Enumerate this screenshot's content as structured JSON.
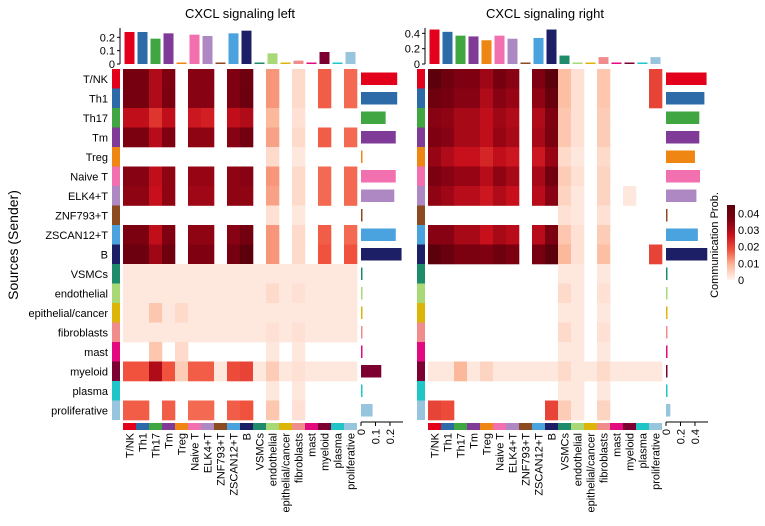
{
  "chart_data": {
    "type": "heatmap",
    "ylabel": "Sources (Sender)",
    "colorbar": {
      "title": "Communication Prob.",
      "ticks": [
        0,
        0.01,
        0.02,
        0.03,
        0.04
      ],
      "range": [
        0,
        0.045
      ],
      "colors": [
        "#fff5f0",
        "#fcb89b",
        "#f0523d",
        "#c8101c",
        "#7f0011",
        "#5c000b"
      ]
    },
    "groups": [
      "T/NK",
      "Th1",
      "Th17",
      "Tm",
      "Treg",
      "Naive T",
      "ELK4+T",
      "ZNF793+T",
      "ZSCAN12+T",
      "B",
      "VSMCs",
      "endothelial",
      "epithelial/cancer",
      "fibroblasts",
      "mast",
      "myeloid",
      "plasma",
      "proliferative"
    ],
    "group_colors": [
      "#e2001a",
      "#2d6aa8",
      "#3fa642",
      "#7f3b97",
      "#ef8512",
      "#f26fb0",
      "#ad88c3",
      "#8c4a20",
      "#4aa3de",
      "#1c1f66",
      "#1e8c6a",
      "#a9d877",
      "#ddb508",
      "#f08c8c",
      "#e3097f",
      "#7c0030",
      "#1fc5c7",
      "#97c5dd"
    ],
    "panels": [
      {
        "title": "CXCL signaling  left",
        "top_bar_ticks": [
          "0",
          "0.1",
          "0.2"
        ],
        "top_bar_tick_values": [
          0,
          0.1,
          0.2
        ],
        "top_bar_max": 0.27,
        "side_bar_ticks": [
          "0",
          "0.1",
          "0.2"
        ],
        "side_bar_tick_values": [
          0,
          0.1,
          0.2
        ],
        "side_bar_max": 0.29,
        "incoming_totals": [
          0.24,
          0.24,
          0.19,
          0.23,
          0.01,
          0.22,
          0.21,
          0.005,
          0.23,
          0.25,
          0.005,
          0.08,
          0.005,
          0.025,
          0.005,
          0.09,
          0.005,
          0.09
        ],
        "outgoing_totals": [
          0.25,
          0.25,
          0.17,
          0.24,
          0.01,
          0.24,
          0.23,
          0.005,
          0.24,
          0.28,
          0.005,
          0.005,
          0.005,
          0.005,
          0.005,
          0.14,
          0.005,
          0.08
        ],
        "matrix": [
          [
            0.038,
            0.038,
            0.03,
            0.036,
            0,
            0.035,
            0.035,
            0,
            0.036,
            0.04,
            0,
            0.012,
            0,
            0.004,
            0,
            0.017,
            0,
            0.016
          ],
          [
            0.038,
            0.038,
            0.03,
            0.037,
            0,
            0.035,
            0.035,
            0,
            0.036,
            0.041,
            0,
            0.012,
            0,
            0.004,
            0,
            0.017,
            0,
            0.016
          ],
          [
            0.028,
            0.028,
            0.022,
            0.028,
            0,
            0.026,
            0.025,
            0,
            0.028,
            0.03,
            0,
            0.009,
            0,
            0.003,
            0,
            0,
            0,
            0
          ],
          [
            0.037,
            0.037,
            0.029,
            0.036,
            0,
            0.034,
            0.034,
            0,
            0.035,
            0.039,
            0,
            0.011,
            0,
            0.004,
            0,
            0.017,
            0,
            0.016
          ],
          [
            0,
            0,
            0,
            0,
            0,
            0,
            0,
            0,
            0,
            0,
            0,
            0.004,
            0,
            0.002,
            0,
            0,
            0,
            0
          ],
          [
            0.035,
            0.035,
            0.028,
            0.034,
            0,
            0.033,
            0.033,
            0,
            0.034,
            0.035,
            0,
            0.012,
            0,
            0.004,
            0,
            0.016,
            0,
            0.016
          ],
          [
            0.034,
            0.034,
            0.027,
            0.034,
            0,
            0.032,
            0.032,
            0,
            0.034,
            0.034,
            0,
            0.011,
            0,
            0.004,
            0,
            0.016,
            0,
            0.016
          ],
          [
            0,
            0,
            0,
            0,
            0,
            0,
            0,
            0,
            0,
            0,
            0,
            0.003,
            0,
            0.002,
            0,
            0,
            0,
            0
          ],
          [
            0.037,
            0.037,
            0.028,
            0.036,
            0,
            0.034,
            0.034,
            0,
            0.035,
            0.039,
            0,
            0.012,
            0,
            0.004,
            0,
            0.017,
            0,
            0.016
          ],
          [
            0.041,
            0.041,
            0.032,
            0.04,
            0,
            0.036,
            0.036,
            0,
            0.038,
            0.045,
            0,
            0.012,
            0,
            0.004,
            0,
            0.018,
            0,
            0.018
          ],
          [
            0.002,
            0.002,
            0.002,
            0.002,
            0.002,
            0.002,
            0.002,
            0.002,
            0.002,
            0.002,
            0.002,
            0.002,
            0.002,
            0.002,
            0.002,
            0.002,
            0.002,
            0.002
          ],
          [
            0.002,
            0.002,
            0.002,
            0.002,
            0.002,
            0.002,
            0.002,
            0.002,
            0.002,
            0.002,
            0.002,
            0.004,
            0.002,
            0.003,
            0.002,
            0.002,
            0.002,
            0.002
          ],
          [
            0.002,
            0.002,
            0.007,
            0.002,
            0.004,
            0.002,
            0.002,
            0.002,
            0.002,
            0.002,
            0.002,
            0.002,
            0.002,
            0.002,
            0.002,
            0.002,
            0.002,
            0.002
          ],
          [
            0.002,
            0.002,
            0.002,
            0.002,
            0.002,
            0.002,
            0.002,
            0.002,
            0.002,
            0.002,
            0.002,
            0.003,
            0.002,
            0.003,
            0.002,
            0.002,
            0.002,
            0.002
          ],
          [
            0,
            0,
            0.007,
            0,
            0.004,
            0,
            0,
            0,
            0,
            0,
            0,
            0.002,
            0,
            0.002,
            0,
            0,
            0,
            0
          ],
          [
            0.018,
            0.018,
            0.03,
            0.018,
            0.006,
            0.017,
            0.017,
            0.002,
            0.019,
            0.02,
            0.002,
            0.006,
            0.002,
            0.003,
            0.002,
            0.002,
            0.002,
            0.002
          ],
          [
            0,
            0,
            0,
            0,
            0,
            0,
            0,
            0,
            0,
            0,
            0,
            0.002,
            0,
            0.002,
            0,
            0,
            0,
            0
          ],
          [
            0.017,
            0.017,
            0,
            0.017,
            0,
            0.016,
            0.016,
            0,
            0.017,
            0.018,
            0,
            0.007,
            0,
            0.003,
            0,
            0,
            0,
            0
          ]
        ]
      },
      {
        "title": "CXCL signaling  right",
        "top_bar_ticks": [
          "0",
          "0.2",
          "0.4"
        ],
        "top_bar_tick_values": [
          0,
          0.2,
          0.4
        ],
        "top_bar_max": 0.47,
        "side_bar_ticks": [
          "0",
          "0.2",
          "0.4"
        ],
        "side_bar_tick_values": [
          0,
          0.2,
          0.4
        ],
        "side_bar_max": 0.58,
        "incoming_totals": [
          0.45,
          0.42,
          0.37,
          0.36,
          0.31,
          0.37,
          0.33,
          0.01,
          0.34,
          0.45,
          0.11,
          0.02,
          0.01,
          0.09,
          0.01,
          0.01,
          0.01,
          0.09
        ],
        "outgoing_totals": [
          0.56,
          0.53,
          0.46,
          0.46,
          0.4,
          0.47,
          0.42,
          0.005,
          0.44,
          0.57,
          0.005,
          0.005,
          0.005,
          0.005,
          0.005,
          0.01,
          0.005,
          0.06
        ],
        "matrix": [
          [
            0.045,
            0.04,
            0.036,
            0.036,
            0.032,
            0.038,
            0.035,
            0,
            0.036,
            0.045,
            0.008,
            0.003,
            0,
            0.007,
            0,
            0,
            0,
            0.02
          ],
          [
            0.04,
            0.038,
            0.035,
            0.035,
            0.03,
            0.035,
            0.033,
            0,
            0.034,
            0.042,
            0.008,
            0.003,
            0,
            0.007,
            0,
            0,
            0,
            0.02
          ],
          [
            0.035,
            0.034,
            0.031,
            0.031,
            0.028,
            0.032,
            0.03,
            0,
            0.03,
            0.036,
            0.007,
            0.003,
            0,
            0.006,
            0,
            0,
            0,
            0
          ],
          [
            0.036,
            0.035,
            0.031,
            0.031,
            0.028,
            0.033,
            0.031,
            0,
            0.031,
            0.037,
            0.007,
            0.003,
            0,
            0.006,
            0,
            0,
            0,
            0
          ],
          [
            0.033,
            0.03,
            0.027,
            0.027,
            0.024,
            0.028,
            0.026,
            0,
            0.026,
            0.033,
            0.004,
            0.002,
            0,
            0.004,
            0,
            0,
            0,
            0
          ],
          [
            0.037,
            0.035,
            0.033,
            0.033,
            0.029,
            0.034,
            0.031,
            0,
            0.031,
            0.039,
            0.006,
            0.003,
            0,
            0.005,
            0,
            0,
            0,
            0
          ],
          [
            0.034,
            0.032,
            0.029,
            0.029,
            0.026,
            0.03,
            0.027,
            0,
            0.029,
            0.035,
            0.005,
            0.002,
            0,
            0.005,
            0,
            0.002,
            0,
            0
          ],
          [
            0,
            0,
            0,
            0,
            0,
            0,
            0,
            0,
            0,
            0,
            0.003,
            0.002,
            0,
            0.003,
            0,
            0,
            0,
            0
          ],
          [
            0.035,
            0.035,
            0.031,
            0.031,
            0.027,
            0.031,
            0.029,
            0,
            0.029,
            0.037,
            0.007,
            0.003,
            0,
            0.006,
            0,
            0,
            0,
            0
          ],
          [
            0.045,
            0.042,
            0.037,
            0.037,
            0.036,
            0.04,
            0.037,
            0,
            0.038,
            0.048,
            0.009,
            0.003,
            0,
            0.008,
            0,
            0,
            0,
            0.02
          ],
          [
            0,
            0,
            0,
            0,
            0,
            0,
            0,
            0,
            0,
            0,
            0.002,
            0.002,
            0,
            0.002,
            0,
            0,
            0,
            0
          ],
          [
            0,
            0,
            0,
            0,
            0,
            0,
            0,
            0,
            0,
            0,
            0.004,
            0.002,
            0,
            0.003,
            0,
            0,
            0,
            0
          ],
          [
            0,
            0,
            0,
            0,
            0,
            0,
            0,
            0,
            0,
            0,
            0.002,
            0.002,
            0,
            0.002,
            0,
            0,
            0,
            0
          ],
          [
            0,
            0,
            0,
            0,
            0,
            0,
            0,
            0,
            0,
            0,
            0.004,
            0.002,
            0,
            0.003,
            0,
            0,
            0,
            0
          ],
          [
            0,
            0,
            0,
            0,
            0,
            0,
            0,
            0,
            0,
            0,
            0.002,
            0.002,
            0,
            0.002,
            0,
            0,
            0,
            0
          ],
          [
            0.002,
            0.002,
            0.009,
            0.002,
            0.005,
            0.002,
            0.002,
            0.002,
            0.002,
            0.002,
            0.004,
            0.002,
            0.002,
            0.004,
            0.002,
            0.002,
            0.002,
            0.002
          ],
          [
            0,
            0,
            0,
            0,
            0,
            0,
            0,
            0,
            0,
            0,
            0.002,
            0.002,
            0,
            0.002,
            0,
            0,
            0,
            0
          ],
          [
            0.02,
            0.019,
            0,
            0,
            0,
            0,
            0,
            0,
            0,
            0.02,
            0.006,
            0.002,
            0,
            0.005,
            0,
            0,
            0,
            0
          ]
        ]
      }
    ]
  }
}
